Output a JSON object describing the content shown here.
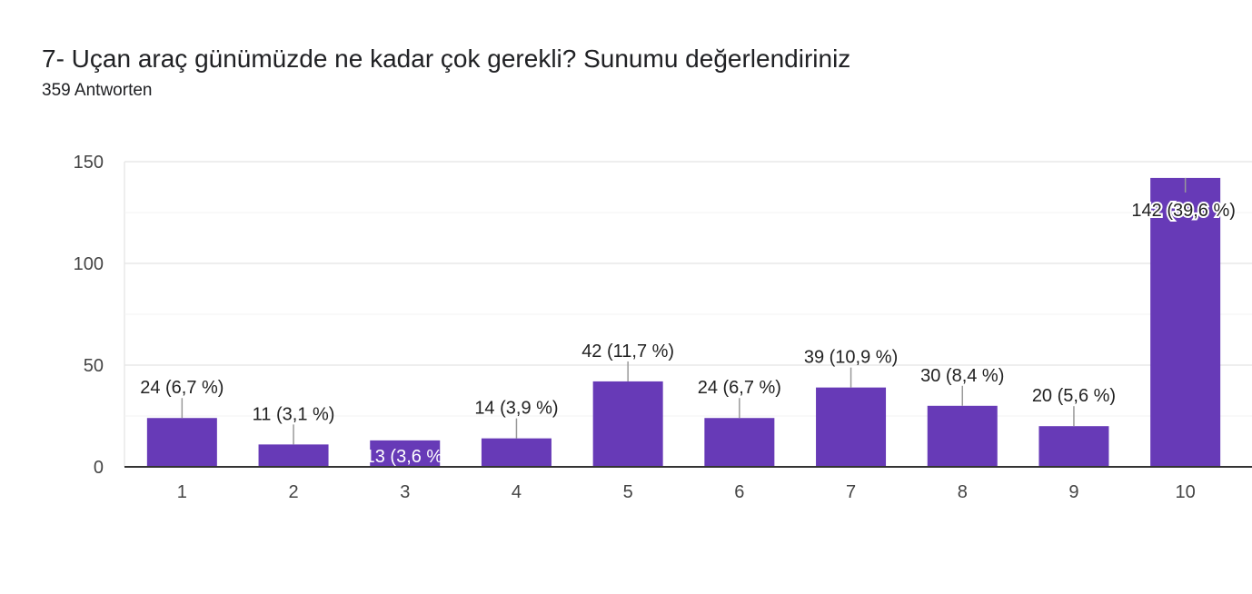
{
  "header": {
    "title": "7- Uçan araç günümüzde ne kadar çok gerekli? Sunumu değerlendiriniz",
    "response_count": "359 Antworten"
  },
  "colors": {
    "bar": "#673ab7",
    "grid": "#e8e8e8",
    "axis": "#333333",
    "label_text": "#222222",
    "label_text_inside": "#ffffff"
  },
  "chart_data": {
    "type": "bar",
    "categories": [
      "1",
      "2",
      "3",
      "4",
      "5",
      "6",
      "7",
      "8",
      "9",
      "10"
    ],
    "values": [
      24,
      11,
      13,
      14,
      42,
      24,
      39,
      30,
      20,
      142
    ],
    "data_labels": [
      "24 (6,7 %)",
      "11 (3,1 %)",
      "13 (3,6 %)",
      "14 (3,9 %)",
      "42 (11,7 %)",
      "24 (6,7 %)",
      "39 (10,9 %)",
      "30 (8,4 %)",
      "20 (5,6 %)",
      "142 (39,6 %)"
    ],
    "ylim": [
      0,
      150
    ],
    "yticks": [
      0,
      50,
      100,
      150
    ],
    "grid": true,
    "xlabel": "",
    "ylabel": ""
  }
}
